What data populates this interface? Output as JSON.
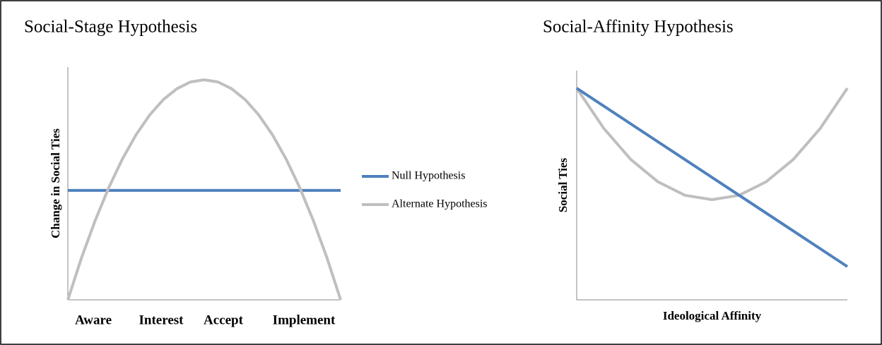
{
  "chart_data": [
    {
      "type": "line",
      "title": "Social-Stage Hypothesis",
      "ylabel": "Change in Social Ties",
      "categories": [
        "Aware",
        "Interest",
        "Accept",
        "Implement"
      ],
      "x": [
        0,
        0.05,
        0.1,
        0.15,
        0.2,
        0.25,
        0.3,
        0.35,
        0.4,
        0.45,
        0.5,
        0.55,
        0.6,
        0.65,
        0.7,
        0.75,
        0.8,
        0.85,
        0.9,
        0.95,
        1
      ],
      "xlim": [
        0,
        1
      ],
      "ylim": [
        0,
        100
      ],
      "legend": "right",
      "series": [
        {
          "name": "Null Hypothesis",
          "color": "#4f81bd",
          "values": [
            47,
            47,
            47,
            47,
            47,
            47,
            47,
            47,
            47,
            47,
            47,
            47,
            47,
            47,
            47,
            47,
            47,
            47,
            47,
            47,
            47
          ]
        },
        {
          "name": "Alternate Hypothesis",
          "color": "#bfbfbf",
          "values": [
            0,
            18.0,
            34.0,
            48.2,
            60.5,
            70.9,
            79.4,
            86.0,
            90.7,
            93.6,
            94.5,
            93.6,
            90.7,
            86.0,
            79.4,
            70.9,
            60.5,
            48.2,
            34.0,
            18.0,
            0
          ]
        }
      ]
    },
    {
      "type": "line",
      "title": "Social-Affinity Hypothesis",
      "ylabel": "Social Ties",
      "xlabel": "Ideological Affinity",
      "x": [
        0,
        0.1,
        0.2,
        0.3,
        0.4,
        0.5,
        0.6,
        0.7,
        0.8,
        0.9,
        1
      ],
      "xlim": [
        0,
        1
      ],
      "ylim": [
        0,
        100
      ],
      "series": [
        {
          "color": "#bfbfbf",
          "values": [
            92.3,
            74.8,
            61.2,
            51.5,
            45.6,
            43.7,
            45.6,
            51.5,
            61.2,
            74.8,
            92.3
          ]
        },
        {
          "color": "#4f81bd",
          "values": [
            92.3,
            null,
            null,
            null,
            null,
            null,
            null,
            null,
            null,
            null,
            14.5
          ]
        }
      ]
    }
  ]
}
